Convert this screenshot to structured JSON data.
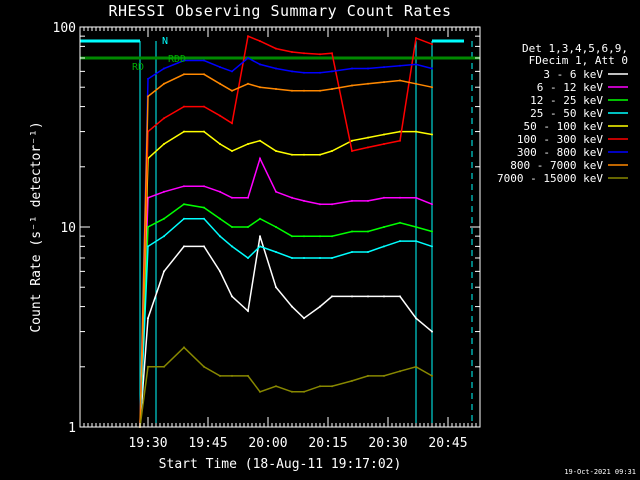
{
  "chart_data": {
    "type": "line",
    "title": "RHESSI Observing Summary Count Rates",
    "xlabel": "Start Time (18-Aug-11 19:17:02)",
    "ylabel": "Count Rate (s⁻¹ detector⁻¹)",
    "y_scale": "log",
    "ylim": [
      1,
      100
    ],
    "xlim_minutes": [
      -4,
      96
    ],
    "x_ticks": [
      {
        "label": "19:30",
        "minutes": 13
      },
      {
        "label": "19:45",
        "minutes": 28
      },
      {
        "label": "20:00",
        "minutes": 43
      },
      {
        "label": "20:15",
        "minutes": 58
      },
      {
        "label": "20:30",
        "minutes": 73
      },
      {
        "label": "20:45",
        "minutes": 88
      }
    ],
    "y_ticks": [
      {
        "label": "1",
        "value": 1
      },
      {
        "label": "10",
        "value": 10
      },
      {
        "label": "100",
        "value": 100
      }
    ],
    "grid": false,
    "legend_position": "top-right",
    "legend_header": [
      "Det 1,3,4,5,6,9,",
      "FDecim 1, Att 0"
    ],
    "annotations": [
      {
        "text": "N",
        "color": "#00ffff"
      },
      {
        "text": "RDD",
        "color": "#00aa00"
      },
      {
        "text": "RD",
        "color": "#00aa00"
      }
    ],
    "orbit_lines_minutes": [
      11,
      15,
      80,
      84
    ],
    "saa_dashed_minutes": [
      15,
      94
    ],
    "rd_level": 70,
    "series": [
      {
        "name": "3 - 6 keV",
        "color": "#ffffff",
        "values": [
          [
            11,
            0
          ],
          [
            13,
            3.5
          ],
          [
            17,
            6
          ],
          [
            22,
            8
          ],
          [
            27,
            8
          ],
          [
            31,
            6
          ],
          [
            34,
            4.5
          ],
          [
            38,
            3.8
          ],
          [
            41,
            9
          ],
          [
            45,
            5
          ],
          [
            49,
            4
          ],
          [
            52,
            3.5
          ],
          [
            56,
            4
          ],
          [
            59,
            4.5
          ],
          [
            64,
            4.5
          ],
          [
            68,
            4.5
          ],
          [
            72,
            4.5
          ],
          [
            76,
            4.5
          ],
          [
            80,
            3.5
          ],
          [
            84,
            3
          ]
        ]
      },
      {
        "name": "6 - 12 keV",
        "color": "#ff00ff",
        "values": [
          [
            11,
            0
          ],
          [
            13,
            14
          ],
          [
            17,
            15
          ],
          [
            22,
            16
          ],
          [
            27,
            16
          ],
          [
            31,
            15
          ],
          [
            34,
            14
          ],
          [
            38,
            14
          ],
          [
            41,
            22
          ],
          [
            45,
            15
          ],
          [
            49,
            14
          ],
          [
            52,
            13.5
          ],
          [
            56,
            13
          ],
          [
            59,
            13
          ],
          [
            64,
            13.5
          ],
          [
            68,
            13.5
          ],
          [
            72,
            14
          ],
          [
            76,
            14
          ],
          [
            80,
            14
          ],
          [
            84,
            13
          ]
        ]
      },
      {
        "name": "12 - 25 keV",
        "color": "#00ff00",
        "values": [
          [
            11,
            0
          ],
          [
            13,
            10
          ],
          [
            17,
            11
          ],
          [
            22,
            13
          ],
          [
            27,
            12.5
          ],
          [
            31,
            11
          ],
          [
            34,
            10
          ],
          [
            38,
            10
          ],
          [
            41,
            11
          ],
          [
            45,
            10
          ],
          [
            49,
            9
          ],
          [
            52,
            9
          ],
          [
            56,
            9
          ],
          [
            59,
            9
          ],
          [
            64,
            9.5
          ],
          [
            68,
            9.5
          ],
          [
            72,
            10
          ],
          [
            76,
            10.5
          ],
          [
            80,
            10
          ],
          [
            84,
            9.5
          ]
        ]
      },
      {
        "name": "25 - 50 keV",
        "color": "#00ffff",
        "values": [
          [
            11,
            0
          ],
          [
            13,
            8
          ],
          [
            17,
            9
          ],
          [
            22,
            11
          ],
          [
            27,
            11
          ],
          [
            31,
            9
          ],
          [
            34,
            8
          ],
          [
            38,
            7
          ],
          [
            41,
            8
          ],
          [
            45,
            7.5
          ],
          [
            49,
            7
          ],
          [
            52,
            7
          ],
          [
            56,
            7
          ],
          [
            59,
            7
          ],
          [
            64,
            7.5
          ],
          [
            68,
            7.5
          ],
          [
            72,
            8
          ],
          [
            76,
            8.5
          ],
          [
            80,
            8.5
          ],
          [
            84,
            8
          ]
        ]
      },
      {
        "name": "50 - 100 keV",
        "color": "#ffff00",
        "values": [
          [
            11,
            0
          ],
          [
            13,
            22
          ],
          [
            17,
            26
          ],
          [
            22,
            30
          ],
          [
            27,
            30
          ],
          [
            31,
            26
          ],
          [
            34,
            24
          ],
          [
            38,
            26
          ],
          [
            41,
            27
          ],
          [
            45,
            24
          ],
          [
            49,
            23
          ],
          [
            52,
            23
          ],
          [
            56,
            23
          ],
          [
            59,
            24
          ],
          [
            64,
            27
          ],
          [
            68,
            28
          ],
          [
            72,
            29
          ],
          [
            76,
            30
          ],
          [
            80,
            30
          ],
          [
            84,
            29
          ]
        ]
      },
      {
        "name": "100 - 300 keV",
        "color": "#ff0000",
        "values": [
          [
            11,
            0
          ],
          [
            13,
            30
          ],
          [
            17,
            35
          ],
          [
            22,
            40
          ],
          [
            27,
            40
          ],
          [
            31,
            36
          ],
          [
            34,
            33
          ],
          [
            38,
            90
          ],
          [
            41,
            85
          ],
          [
            45,
            78
          ],
          [
            49,
            75
          ],
          [
            52,
            74
          ],
          [
            56,
            73
          ],
          [
            59,
            74
          ],
          [
            64,
            24
          ],
          [
            68,
            25
          ],
          [
            72,
            26
          ],
          [
            76,
            27
          ],
          [
            80,
            88
          ],
          [
            84,
            82
          ]
        ]
      },
      {
        "name": "300 - 800 keV",
        "color": "#0000ff",
        "values": [
          [
            11,
            0
          ],
          [
            13,
            55
          ],
          [
            17,
            62
          ],
          [
            22,
            68
          ],
          [
            27,
            68
          ],
          [
            31,
            63
          ],
          [
            34,
            60
          ],
          [
            38,
            70
          ],
          [
            41,
            65
          ],
          [
            45,
            62
          ],
          [
            49,
            60
          ],
          [
            52,
            59
          ],
          [
            56,
            59
          ],
          [
            59,
            60
          ],
          [
            64,
            62
          ],
          [
            68,
            62
          ],
          [
            72,
            63
          ],
          [
            76,
            64
          ],
          [
            80,
            65
          ],
          [
            84,
            62
          ]
        ]
      },
      {
        "name": "800 - 7000 keV",
        "color": "#ff8800",
        "values": [
          [
            11,
            0
          ],
          [
            13,
            45
          ],
          [
            17,
            52
          ],
          [
            22,
            58
          ],
          [
            27,
            58
          ],
          [
            31,
            52
          ],
          [
            34,
            48
          ],
          [
            38,
            52
          ],
          [
            41,
            50
          ],
          [
            45,
            49
          ],
          [
            49,
            48
          ],
          [
            52,
            48
          ],
          [
            56,
            48
          ],
          [
            59,
            49
          ],
          [
            64,
            51
          ],
          [
            68,
            52
          ],
          [
            72,
            53
          ],
          [
            76,
            54
          ],
          [
            80,
            52
          ],
          [
            84,
            50
          ]
        ]
      },
      {
        "name": "7000 - 15000 keV",
        "color": "#888800",
        "values": [
          [
            11,
            0
          ],
          [
            13,
            2
          ],
          [
            17,
            2
          ],
          [
            22,
            2.5
          ],
          [
            27,
            2
          ],
          [
            31,
            1.8
          ],
          [
            34,
            1.8
          ],
          [
            38,
            1.8
          ],
          [
            41,
            1.5
          ],
          [
            45,
            1.6
          ],
          [
            49,
            1.5
          ],
          [
            52,
            1.5
          ],
          [
            56,
            1.6
          ],
          [
            59,
            1.6
          ],
          [
            64,
            1.7
          ],
          [
            68,
            1.8
          ],
          [
            72,
            1.8
          ],
          [
            76,
            1.9
          ],
          [
            80,
            2
          ],
          [
            84,
            1.8
          ]
        ]
      }
    ]
  },
  "footer": {
    "timestamp": "19-Oct-2021 09:31"
  }
}
